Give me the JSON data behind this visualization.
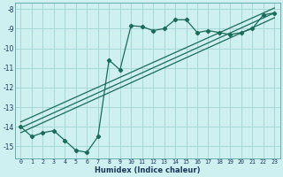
{
  "xlabel": "Humidex (Indice chaleur)",
  "bg_color": "#cff0f0",
  "grid_color": "#a8d8d8",
  "line_color": "#1a6b5a",
  "xlim": [
    -0.5,
    23.5
  ],
  "ylim": [
    -15.6,
    -7.7
  ],
  "xticks": [
    0,
    1,
    2,
    3,
    4,
    5,
    6,
    7,
    8,
    9,
    10,
    11,
    12,
    13,
    14,
    15,
    16,
    17,
    18,
    19,
    20,
    21,
    22,
    23
  ],
  "yticks": [
    -8,
    -9,
    -10,
    -11,
    -12,
    -13,
    -14,
    -15
  ],
  "main_x": [
    0,
    1,
    2,
    3,
    4,
    5,
    6,
    7,
    8,
    9,
    10,
    11,
    12,
    13,
    14,
    15,
    16,
    17,
    18,
    19,
    20,
    21,
    22,
    23
  ],
  "main_y": [
    -14.0,
    -14.5,
    -14.3,
    -14.2,
    -14.7,
    -15.2,
    -15.3,
    -14.5,
    -10.6,
    -11.1,
    -8.85,
    -8.9,
    -9.1,
    -9.0,
    -8.55,
    -8.55,
    -9.2,
    -9.1,
    -9.2,
    -9.3,
    -9.2,
    -9.0,
    -8.3,
    -8.2
  ],
  "line1_x": [
    0,
    23
  ],
  "line1_y": [
    -14.05,
    -8.2
  ],
  "line2_x": [
    0,
    23
  ],
  "line2_y": [
    -14.3,
    -8.45
  ],
  "line3_x": [
    0,
    23
  ],
  "line3_y": [
    -13.75,
    -7.95
  ],
  "tick_color": "#1a3a5a",
  "xlabel_fontsize": 6.0,
  "xtick_fontsize": 4.8,
  "ytick_fontsize": 5.5
}
